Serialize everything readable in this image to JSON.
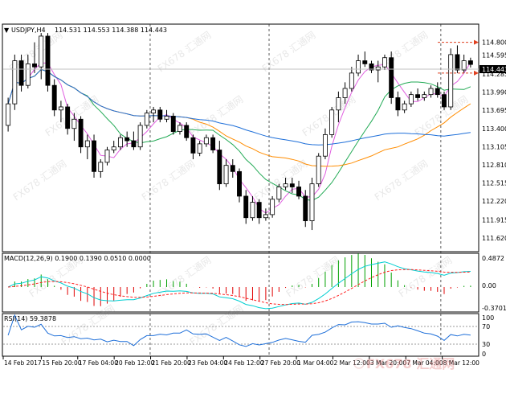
{
  "window": {
    "title": "USDJPY,H4",
    "ohlc": "114.531 114.553 114.388 114.443",
    "current_price": "114.443"
  },
  "macd_panel": {
    "label": "MACD(12,26,9) 0.1900 0.1390 0.0510 0.0000",
    "axis": [
      "0.4872",
      "0.00",
      "-0.3701"
    ]
  },
  "rsi_panel": {
    "label": "RSI(14) 59.3878",
    "axis": [
      "100",
      "70",
      "30",
      "0"
    ]
  },
  "price_axis": [
    "114.800",
    "114.595",
    "114.285",
    "113.990",
    "113.695",
    "113.400",
    "113.105",
    "112.810",
    "112.515",
    "112.220",
    "111.915",
    "111.620"
  ],
  "time_axis": [
    "14 Feb 2017",
    "15 Feb 20:00",
    "17 Feb 04:00",
    "20 Feb 12:00",
    "21 Feb 20:00",
    "23 Feb 04:00",
    "24 Feb 12:00",
    "27 Feb 20:00",
    "1 Mar 04:00",
    "2 Mar 12:00",
    "3 Mar 20:00",
    "7 Mar 04:00",
    "8 Mar 12:00"
  ],
  "watermark": {
    "text": "FX678 汇通网"
  },
  "colors": {
    "candle_up": "#ffffff",
    "candle_down": "#000000",
    "ma_fast": "#e05fe0",
    "ma_mid": "#22aa55",
    "ma_slow": "#ff8c00",
    "ma_long": "#1e6fd9",
    "macd_line": "#00ced1",
    "macd_signal": "#ff2020",
    "histogram_up": "#00a000",
    "histogram_down": "#e00000",
    "rsi_line": "#1e6fd9",
    "target_line": "#e04020"
  },
  "chart_data": {
    "type": "candlestick",
    "symbol": "USDJPY",
    "timeframe": "H4",
    "ylim": [
      111.62,
      114.86
    ],
    "candles": [
      [
        113.45,
        113.9,
        113.35,
        113.8
      ],
      [
        113.8,
        114.6,
        113.7,
        114.5
      ],
      [
        114.5,
        114.6,
        114.0,
        114.1
      ],
      [
        114.1,
        114.6,
        114.05,
        114.45
      ],
      [
        114.45,
        114.8,
        114.3,
        114.4
      ],
      [
        114.4,
        114.95,
        114.2,
        114.9
      ],
      [
        114.9,
        114.95,
        114.0,
        114.1
      ],
      [
        114.1,
        114.2,
        113.6,
        113.7
      ],
      [
        113.7,
        113.85,
        113.5,
        113.75
      ],
      [
        113.75,
        113.8,
        113.3,
        113.4
      ],
      [
        113.4,
        113.65,
        113.2,
        113.55
      ],
      [
        113.55,
        113.6,
        113.0,
        113.1
      ],
      [
        113.1,
        113.3,
        112.9,
        113.2
      ],
      [
        113.2,
        113.3,
        112.6,
        112.7
      ],
      [
        112.7,
        112.9,
        112.6,
        112.85
      ],
      [
        112.85,
        113.1,
        112.8,
        113.05
      ],
      [
        113.05,
        113.2,
        113.0,
        113.1
      ],
      [
        113.1,
        113.3,
        113.05,
        113.25
      ],
      [
        113.25,
        113.35,
        113.1,
        113.2
      ],
      [
        113.2,
        113.35,
        113.05,
        113.1
      ],
      [
        113.1,
        113.5,
        113.05,
        113.45
      ],
      [
        113.45,
        113.7,
        113.4,
        113.65
      ],
      [
        113.65,
        113.75,
        113.5,
        113.7
      ],
      [
        113.7,
        113.75,
        113.5,
        113.55
      ],
      [
        113.55,
        113.7,
        113.5,
        113.6
      ],
      [
        113.6,
        113.65,
        113.3,
        113.35
      ],
      [
        113.35,
        113.5,
        113.3,
        113.45
      ],
      [
        113.45,
        113.5,
        113.2,
        113.25
      ],
      [
        113.25,
        113.3,
        112.9,
        113.0
      ],
      [
        113.0,
        113.2,
        112.95,
        113.15
      ],
      [
        113.15,
        113.3,
        113.1,
        113.25
      ],
      [
        113.25,
        113.3,
        113.0,
        113.05
      ],
      [
        113.05,
        113.2,
        112.4,
        112.5
      ],
      [
        112.5,
        112.9,
        112.45,
        112.8
      ],
      [
        112.8,
        112.9,
        112.6,
        112.7
      ],
      [
        112.7,
        112.75,
        112.2,
        112.3
      ],
      [
        112.3,
        112.4,
        111.85,
        111.95
      ],
      [
        111.95,
        112.3,
        111.9,
        112.2
      ],
      [
        112.2,
        112.25,
        111.85,
        111.95
      ],
      [
        111.95,
        112.1,
        111.9,
        112.0
      ],
      [
        112.0,
        112.3,
        111.95,
        112.25
      ],
      [
        112.25,
        112.5,
        112.2,
        112.45
      ],
      [
        112.45,
        112.6,
        112.4,
        112.5
      ],
      [
        112.5,
        112.6,
        112.35,
        112.45
      ],
      [
        112.45,
        112.55,
        112.25,
        112.3
      ],
      [
        112.3,
        112.4,
        111.8,
        111.9
      ],
      [
        111.9,
        112.6,
        111.75,
        112.5
      ],
      [
        112.5,
        113.0,
        112.45,
        112.95
      ],
      [
        112.95,
        113.4,
        112.9,
        113.3
      ],
      [
        113.3,
        113.75,
        113.25,
        113.7
      ],
      [
        113.7,
        114.0,
        113.5,
        113.9
      ],
      [
        113.9,
        114.15,
        113.8,
        114.05
      ],
      [
        114.05,
        114.4,
        114.0,
        114.3
      ],
      [
        114.3,
        114.6,
        114.25,
        114.5
      ],
      [
        114.5,
        114.65,
        114.4,
        114.45
      ],
      [
        114.45,
        114.5,
        114.3,
        114.35
      ],
      [
        114.35,
        114.5,
        114.15,
        114.4
      ],
      [
        114.4,
        114.6,
        114.35,
        114.55
      ],
      [
        114.55,
        114.65,
        113.8,
        113.9
      ],
      [
        113.9,
        114.0,
        113.6,
        113.7
      ],
      [
        113.7,
        113.85,
        113.65,
        113.8
      ],
      [
        113.8,
        114.0,
        113.75,
        113.95
      ],
      [
        113.95,
        114.05,
        113.85,
        113.9
      ],
      [
        113.9,
        114.0,
        113.85,
        113.95
      ],
      [
        113.95,
        114.1,
        113.9,
        114.05
      ],
      [
        114.05,
        114.15,
        113.9,
        113.95
      ],
      [
        113.95,
        114.0,
        113.7,
        113.75
      ],
      [
        113.75,
        114.7,
        113.7,
        114.6
      ],
      [
        114.6,
        114.75,
        114.3,
        114.35
      ],
      [
        114.35,
        114.6,
        114.3,
        114.5
      ],
      [
        114.5,
        114.55,
        114.39,
        114.44
      ]
    ],
    "target_levels": [
      114.8,
      114.3
    ]
  }
}
